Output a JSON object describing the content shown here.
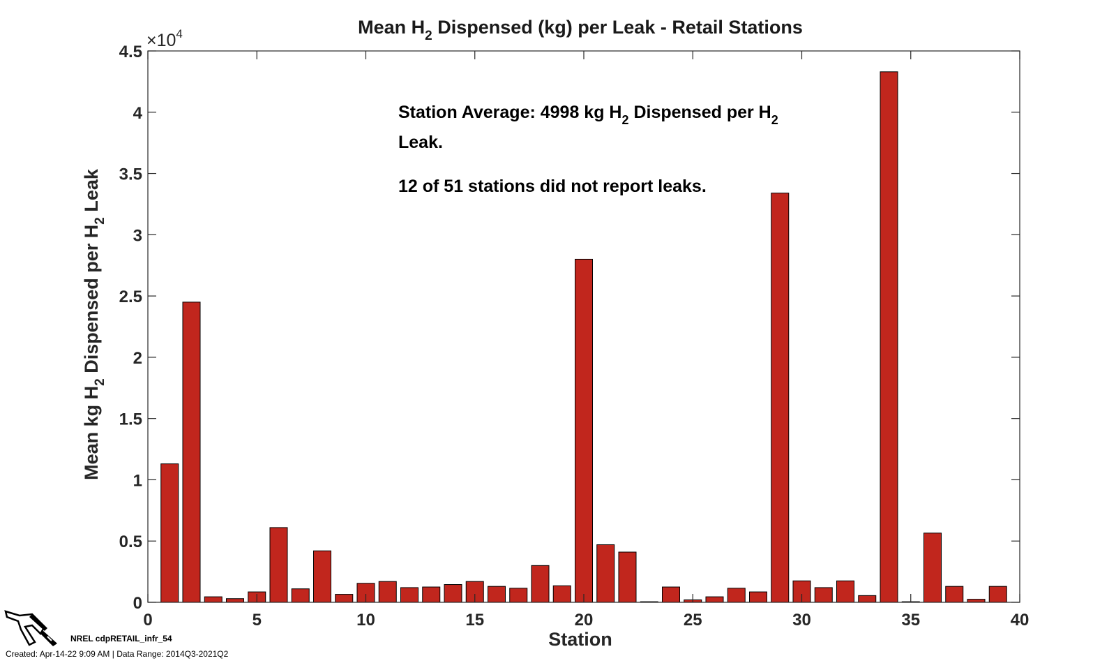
{
  "chart_data": {
    "type": "bar",
    "title": "Mean H",
    "title_sub": "2",
    "title_rest": " Dispensed (kg) per Leak - Retail Stations",
    "xlabel": "Station",
    "ylabel_parts": [
      "Mean kg H",
      "2",
      " Dispensed per H",
      "2",
      " Leak"
    ],
    "exponent_label": "×10",
    "exponent_power": "4",
    "xlim": [
      0,
      40
    ],
    "ylim": [
      0,
      45000
    ],
    "xticks": [
      0,
      5,
      10,
      15,
      20,
      25,
      30,
      35,
      40
    ],
    "xtick_labels": [
      "0",
      "5",
      "10",
      "15",
      "20",
      "25",
      "30",
      "35",
      "40"
    ],
    "yticks": [
      0,
      5000,
      10000,
      15000,
      20000,
      25000,
      30000,
      35000,
      40000,
      45000
    ],
    "ytick_labels": [
      "0",
      "0.5",
      "1",
      "1.5",
      "2",
      "2.5",
      "3",
      "3.5",
      "4",
      "4.5"
    ],
    "bar_color": "#c1261d",
    "x": [
      1,
      2,
      3,
      4,
      5,
      6,
      7,
      8,
      9,
      10,
      11,
      12,
      13,
      14,
      15,
      16,
      17,
      18,
      19,
      20,
      21,
      22,
      23,
      24,
      25,
      26,
      27,
      28,
      29,
      30,
      31,
      32,
      33,
      34,
      35,
      36,
      37,
      38,
      39
    ],
    "values": [
      11300,
      24500,
      450,
      300,
      850,
      6100,
      1100,
      4200,
      650,
      1550,
      1700,
      1200,
      1250,
      1450,
      1700,
      1300,
      1150,
      3000,
      1350,
      28000,
      4700,
      4100,
      50,
      1250,
      200,
      450,
      1150,
      850,
      33400,
      1750,
      1200,
      1750,
      550,
      43300,
      50,
      5650,
      1300,
      250,
      1300
    ],
    "annotation": {
      "line1_a": "Station Average: 4998 kg H",
      "line1_sub1": "2",
      "line1_b": " Dispensed per H",
      "line1_sub2": "2",
      "line2": "Leak.",
      "line3": " 12 of 51 stations did not report leaks."
    }
  },
  "footer": {
    "id": "NREL cdpRETAIL_infr_54",
    "meta": "Created: Apr-14-22  9:09 AM | Data Range: 2014Q3-2021Q2"
  },
  "logo_icon": "fuel-nozzle-icon"
}
